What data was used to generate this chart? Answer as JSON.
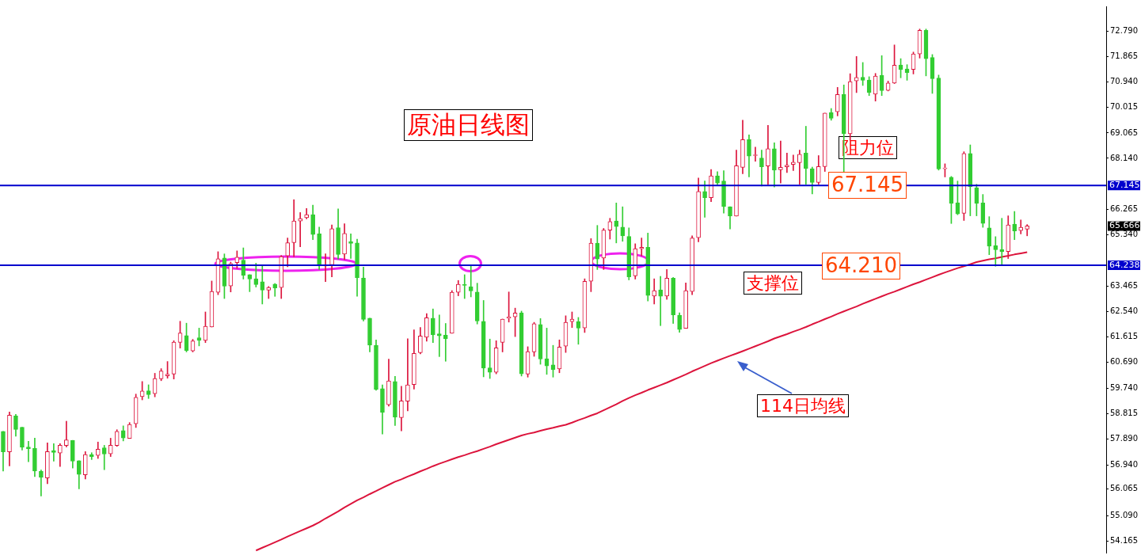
{
  "chart_data": {
    "type": "candlestick",
    "categories": [
      null,
      null,
      null,
      null,
      null,
      null,
      null,
      null,
      null,
      null,
      null,
      null,
      null,
      null,
      null,
      null,
      null,
      null,
      null,
      null,
      null,
      null,
      null,
      null,
      null,
      null,
      null,
      null,
      null,
      null,
      null,
      null,
      null,
      null,
      null,
      null,
      null,
      null,
      null,
      null,
      null,
      null,
      null,
      null,
      null,
      null,
      null,
      null,
      null,
      null,
      null,
      null,
      null,
      null,
      null,
      null,
      null,
      null,
      null,
      null,
      null,
      null,
      null,
      null,
      null,
      null,
      null,
      null,
      null,
      null,
      null,
      null,
      null,
      null,
      null,
      null,
      null,
      null,
      null,
      null,
      null,
      null,
      null,
      null,
      null,
      null,
      null,
      null,
      null,
      null,
      null,
      null,
      null,
      null,
      null,
      null,
      null,
      null,
      null,
      null,
      null,
      null,
      null,
      null,
      null,
      null,
      null,
      null,
      null,
      null,
      null,
      null,
      null,
      null,
      null,
      null,
      null,
      null,
      null,
      null,
      null,
      null,
      null,
      null,
      null,
      null,
      null,
      null,
      null,
      null,
      null,
      null,
      null,
      null,
      null,
      null,
      null,
      null,
      null,
      null,
      null,
      null,
      null,
      null,
      null,
      null,
      null,
      null,
      null,
      null,
      null,
      null,
      null,
      null,
      null,
      null,
      null,
      null,
      null,
      null,
      null,
      null,
      null,
      null,
      null,
      null,
      null,
      null,
      null,
      null,
      null,
      null,
      null,
      null,
      null
    ],
    "ohlc": [
      [
        58.17,
        58.17,
        56.72,
        57.42
      ],
      [
        57.42,
        58.88,
        56.91,
        58.76
      ],
      [
        58.73,
        58.79,
        57.99,
        58.24
      ],
      [
        58.32,
        58.32,
        57.49,
        57.59
      ],
      [
        57.6,
        57.81,
        57.06,
        57.54
      ],
      [
        57.55,
        57.92,
        56.52,
        56.72
      ],
      [
        56.71,
        56.76,
        55.81,
        56.49
      ],
      [
        56.47,
        57.75,
        56.26,
        57.43
      ],
      [
        57.47,
        57.72,
        57.08,
        57.4
      ],
      [
        57.38,
        57.72,
        56.89,
        57.66
      ],
      [
        57.65,
        58.54,
        57.6,
        57.86
      ],
      [
        57.84,
        57.84,
        56.83,
        57.08
      ],
      [
        57.1,
        57.1,
        56.07,
        56.6
      ],
      [
        56.58,
        57.43,
        56.43,
        57.32
      ],
      [
        57.32,
        57.39,
        57.14,
        57.25
      ],
      [
        57.29,
        57.78,
        57.18,
        57.52
      ],
      [
        57.57,
        57.66,
        56.77,
        57.34
      ],
      [
        57.35,
        57.92,
        57.25,
        57.66
      ],
      [
        57.65,
        58.23,
        57.62,
        58.17
      ],
      [
        58.2,
        58.37,
        57.82,
        57.93
      ],
      [
        57.91,
        58.49,
        57.91,
        58.42
      ],
      [
        58.45,
        59.53,
        58.31,
        59.41
      ],
      [
        59.44,
        59.99,
        59.32,
        59.64
      ],
      [
        59.65,
        59.87,
        59.37,
        59.51
      ],
      [
        59.55,
        60.29,
        59.43,
        60.1
      ],
      [
        60.09,
        60.46,
        60.02,
        60.37
      ],
      [
        60.2,
        60.72,
        60.11,
        60.26
      ],
      [
        60.26,
        61.48,
        60.08,
        61.43
      ],
      [
        61.42,
        62.19,
        61.21,
        61.76
      ],
      [
        61.67,
        62.12,
        61.07,
        61.12
      ],
      [
        61.11,
        61.53,
        61.07,
        61.47
      ],
      [
        61.59,
        61.94,
        61.29,
        61.49
      ],
      [
        61.49,
        62.53,
        61.41,
        62.01
      ],
      [
        61.98,
        63.66,
        61.98,
        63.28
      ],
      [
        63.25,
        64.73,
        63.16,
        64.47
      ],
      [
        64.5,
        64.65,
        63.02,
        63.47
      ],
      [
        63.48,
        64.35,
        63.26,
        64.3
      ],
      [
        64.33,
        64.76,
        64.12,
        64.53
      ],
      [
        64.42,
        64.87,
        63.73,
        63.87
      ],
      [
        63.89,
        63.89,
        63.27,
        63.73
      ],
      [
        63.74,
        64.31,
        63.44,
        63.53
      ],
      [
        63.63,
        64.2,
        62.82,
        63.33
      ],
      [
        63.33,
        63.46,
        63.02,
        63.42
      ],
      [
        63.55,
        63.57,
        63.1,
        63.41
      ],
      [
        63.42,
        64.59,
        63.02,
        64.55
      ],
      [
        64.58,
        65.23,
        64.18,
        65.06
      ],
      [
        65.06,
        66.63,
        64.55,
        65.85
      ],
      [
        65.85,
        66.16,
        64.91,
        65.94
      ],
      [
        65.97,
        66.31,
        65.93,
        66.08
      ],
      [
        66.08,
        66.43,
        65.17,
        65.36
      ],
      [
        65.38,
        65.63,
        64.08,
        64.21
      ],
      [
        64.21,
        64.65,
        63.64,
        64.25
      ],
      [
        64.25,
        65.71,
        63.81,
        65.57
      ],
      [
        65.61,
        66.29,
        64.46,
        64.63
      ],
      [
        64.64,
        65.75,
        64.44,
        65.4
      ],
      [
        65.1,
        65.38,
        64.48,
        65.03
      ],
      [
        65.05,
        65.19,
        63.1,
        63.78
      ],
      [
        63.77,
        64.17,
        62.2,
        62.26
      ],
      [
        62.3,
        62.3,
        61.07,
        61.32
      ],
      [
        61.31,
        61.51,
        59.67,
        59.7
      ],
      [
        59.73,
        59.87,
        58.07,
        58.86
      ],
      [
        59.14,
        60.81,
        59.09,
        60.01
      ],
      [
        59.99,
        60.18,
        58.38,
        58.69
      ],
      [
        58.67,
        59.82,
        58.19,
        59.28
      ],
      [
        59.27,
        61.55,
        58.92,
        59.87
      ],
      [
        59.88,
        61.88,
        59.71,
        61.02
      ],
      [
        61.04,
        61.96,
        61.0,
        61.65
      ],
      [
        61.61,
        62.47,
        61.46,
        62.32
      ],
      [
        62.3,
        62.64,
        61.41,
        61.69
      ],
      [
        61.73,
        62.42,
        60.9,
        61.66
      ],
      [
        61.68,
        62.11,
        60.73,
        61.55
      ],
      [
        61.75,
        63.31,
        61.75,
        63.25
      ],
      [
        63.25,
        63.68,
        63.12,
        63.54
      ],
      [
        63.52,
        63.89,
        63.02,
        63.5
      ],
      [
        63.45,
        64.23,
        63.08,
        63.3
      ],
      [
        63.26,
        63.58,
        62.09,
        62.2
      ],
      [
        62.19,
        62.95,
        60.16,
        60.48
      ],
      [
        60.49,
        61.54,
        60.1,
        60.33
      ],
      [
        60.33,
        61.48,
        60.27,
        61.22
      ],
      [
        61.42,
        62.27,
        61.07,
        62.27
      ],
      [
        62.3,
        63.26,
        62.16,
        62.35
      ],
      [
        62.35,
        62.67,
        61.63,
        62.49
      ],
      [
        62.5,
        62.56,
        60.19,
        60.27
      ],
      [
        60.26,
        61.26,
        60.15,
        61.08
      ],
      [
        61.07,
        62.15,
        60.91,
        62.1
      ],
      [
        62.07,
        62.29,
        60.62,
        60.81
      ],
      [
        60.82,
        61.94,
        60.25,
        60.56
      ],
      [
        60.6,
        61.31,
        60.15,
        60.42
      ],
      [
        60.45,
        61.51,
        60.31,
        61.25
      ],
      [
        61.28,
        62.39,
        61.05,
        62.15
      ],
      [
        62.18,
        62.53,
        61.96,
        62.27
      ],
      [
        62.18,
        62.33,
        61.35,
        61.94
      ],
      [
        61.95,
        63.74,
        61.78,
        63.65
      ],
      [
        63.65,
        65.21,
        63.27,
        65.04
      ],
      [
        65.04,
        65.69,
        64.08,
        64.46
      ],
      [
        64.5,
        65.58,
        64.08,
        65.52
      ],
      [
        65.52,
        65.95,
        65.19,
        65.83
      ],
      [
        65.85,
        66.51,
        65.05,
        65.65
      ],
      [
        65.63,
        66.37,
        65.11,
        65.31
      ],
      [
        65.29,
        65.6,
        63.7,
        63.81
      ],
      [
        63.85,
        65.02,
        63.73,
        64.84
      ],
      [
        64.84,
        65.23,
        64.58,
        64.89
      ],
      [
        64.89,
        65.41,
        62.93,
        63.13
      ],
      [
        63.11,
        63.74,
        62.82,
        63.31
      ],
      [
        63.34,
        63.83,
        62.03,
        63.1
      ],
      [
        63.11,
        64.08,
        62.99,
        63.76
      ],
      [
        63.76,
        63.79,
        62.11,
        62.42
      ],
      [
        62.41,
        62.5,
        61.79,
        61.89
      ],
      [
        61.93,
        63.59,
        61.93,
        63.31
      ],
      [
        63.28,
        65.31,
        63.16,
        65.23
      ],
      [
        65.24,
        67.42,
        65.09,
        66.93
      ],
      [
        66.93,
        67.31,
        65.99,
        66.7
      ],
      [
        66.7,
        67.73,
        66.56,
        67.5
      ],
      [
        67.5,
        67.65,
        67.18,
        67.24
      ],
      [
        67.31,
        67.69,
        66.14,
        66.38
      ],
      [
        66.37,
        66.37,
        65.56,
        66.03
      ],
      [
        66.03,
        68.44,
        66.03,
        67.87
      ],
      [
        67.81,
        69.53,
        67.58,
        68.82
      ],
      [
        68.82,
        69.0,
        67.46,
        68.22
      ],
      [
        68.24,
        68.55,
        68.03,
        68.26
      ],
      [
        68.15,
        68.44,
        67.13,
        67.83
      ],
      [
        67.86,
        69.34,
        67.18,
        68.49
      ],
      [
        68.49,
        68.71,
        67.09,
        67.71
      ],
      [
        67.72,
        68.77,
        67.24,
        67.81
      ],
      [
        67.83,
        68.33,
        67.62,
        67.89
      ],
      [
        67.92,
        68.26,
        67.69,
        68.0
      ],
      [
        67.98,
        68.44,
        67.19,
        68.29
      ],
      [
        68.33,
        69.31,
        67.19,
        67.77
      ],
      [
        67.76,
        67.82,
        66.84,
        67.26
      ],
      [
        67.26,
        68.24,
        67.19,
        67.84
      ],
      [
        67.84,
        69.79,
        67.66,
        69.79
      ],
      [
        69.81,
        69.96,
        69.53,
        69.6
      ],
      [
        69.84,
        70.73,
        69.69,
        70.47
      ],
      [
        70.47,
        70.82,
        67.62,
        69.04
      ],
      [
        69.04,
        71.23,
        68.8,
        70.94
      ],
      [
        70.97,
        71.86,
        70.54,
        71.09
      ],
      [
        71.1,
        71.64,
        70.8,
        70.99
      ],
      [
        71.0,
        71.12,
        70.43,
        70.54
      ],
      [
        70.48,
        71.24,
        70.23,
        71.14
      ],
      [
        71.17,
        71.89,
        70.43,
        70.61
      ],
      [
        70.62,
        70.96,
        70.6,
        70.89
      ],
      [
        70.89,
        72.28,
        70.87,
        71.54
      ],
      [
        71.55,
        71.78,
        71.08,
        71.38
      ],
      [
        71.4,
        71.56,
        70.99,
        71.27
      ],
      [
        71.39,
        72.02,
        71.22,
        71.95
      ],
      [
        71.95,
        72.86,
        71.8,
        72.81
      ],
      [
        72.81,
        72.86,
        71.15,
        71.78
      ],
      [
        71.82,
        71.93,
        70.51,
        71.05
      ],
      [
        71.07,
        71.18,
        67.71,
        67.75
      ],
      [
        67.76,
        67.94,
        67.46,
        67.78
      ],
      [
        67.45,
        67.48,
        65.76,
        66.49
      ],
      [
        66.52,
        67.31,
        66.08,
        66.11
      ],
      [
        66.13,
        68.38,
        65.87,
        68.32
      ],
      [
        68.32,
        68.63,
        66.04,
        67.1
      ],
      [
        67.07,
        67.19,
        66.04,
        66.49
      ],
      [
        66.51,
        66.82,
        65.62,
        65.76
      ],
      [
        65.6,
        66.01,
        64.62,
        64.93
      ],
      [
        64.95,
        65.28,
        64.2,
        64.8
      ],
      [
        64.81,
        65.95,
        64.26,
        64.73
      ],
      [
        64.74,
        66.04,
        64.48,
        65.71
      ],
      [
        65.74,
        66.2,
        65.17,
        65.49
      ],
      [
        65.5,
        65.89,
        65.38,
        65.62
      ],
      [
        65.55,
        65.72,
        65.31,
        65.67
      ],
      null,
      null,
      null,
      null,
      null,
      null,
      null,
      null,
      null,
      null,
      null,
      null
    ],
    "colors": [
      "#32cd32",
      "#dc143c",
      "#32cd32",
      "#32cd32",
      "#32cd32",
      "#32cd32",
      "#32cd32",
      "#dc143c",
      "#32cd32",
      "#dc143c",
      "#dc143c",
      "#32cd32",
      "#32cd32",
      "#dc143c",
      "#32cd32",
      "#dc143c",
      "#32cd32",
      "#dc143c",
      "#dc143c",
      "#32cd32",
      "#dc143c",
      "#dc143c",
      "#dc143c",
      "#32cd32",
      "#dc143c",
      "#dc143c",
      "#dc143c",
      "#dc143c",
      "#dc143c",
      "#32cd32",
      "#dc143c",
      "#32cd32",
      "#dc143c",
      "#dc143c",
      "#dc143c",
      "#32cd32",
      "#dc143c",
      "#dc143c",
      "#32cd32",
      "#32cd32",
      "#32cd32",
      "#32cd32",
      "#dc143c",
      "#32cd32",
      "#dc143c",
      "#dc143c",
      "#dc143c",
      "#dc143c",
      "#dc143c",
      "#32cd32",
      "#32cd32",
      "#dc143c",
      "#dc143c",
      "#32cd32",
      "#dc143c",
      "#32cd32",
      "#32cd32",
      "#32cd32",
      "#32cd32",
      "#32cd32",
      "#32cd32",
      "#dc143c",
      "#32cd32",
      "#dc143c",
      "#dc143c",
      "#dc143c",
      "#dc143c",
      "#dc143c",
      "#32cd32",
      "#32cd32",
      "#32cd32",
      "#dc143c",
      "#dc143c",
      "#32cd32",
      "#32cd32",
      "#32cd32",
      "#32cd32",
      "#32cd32",
      "#dc143c",
      "#dc143c",
      "#dc143c",
      "#dc143c",
      "#32cd32",
      "#dc143c",
      "#dc143c",
      "#32cd32",
      "#32cd32",
      "#32cd32",
      "#dc143c",
      "#dc143c",
      "#dc143c",
      "#32cd32",
      "#dc143c",
      "#dc143c",
      "#32cd32",
      "#dc143c",
      "#dc143c",
      "#32cd32",
      "#32cd32",
      "#32cd32",
      "#dc143c",
      "#dc143c",
      "#32cd32",
      "#dc143c",
      "#32cd32",
      "#dc143c",
      "#32cd32",
      "#32cd32",
      "#dc143c",
      "#dc143c",
      "#dc143c",
      "#32cd32",
      "#dc143c",
      "#32cd32",
      "#32cd32",
      "#32cd32",
      "#dc143c",
      "#dc143c",
      "#32cd32",
      "#dc143c",
      "#32cd32",
      "#dc143c",
      "#32cd32",
      "#dc143c",
      "#dc143c",
      "#dc143c",
      "#dc143c",
      "#32cd32",
      "#32cd32",
      "#dc143c",
      "#dc143c",
      "#32cd32",
      "#dc143c",
      "#32cd32",
      "#dc143c",
      "#dc143c",
      "#32cd32",
      "#32cd32",
      "#dc143c",
      "#32cd32",
      "#dc143c",
      "#dc143c",
      "#32cd32",
      "#32cd32",
      "#dc143c",
      "#dc143c",
      "#32cd32",
      "#32cd32",
      "#32cd32",
      "#dc143c",
      "#32cd32",
      "#32cd32",
      "#dc143c",
      "#32cd32",
      "#32cd32",
      "#32cd32",
      "#32cd32",
      "#32cd32",
      "#32cd32",
      "#dc143c",
      "#32cd32",
      "#dc143c",
      "#dc143c",
      null,
      null,
      null,
      null,
      null,
      null,
      null,
      null,
      null,
      null,
      null,
      null
    ],
    "series": [
      {
        "type": "line",
        "color": "#dc143c",
        "values": [
          null,
          null,
          null,
          null,
          null,
          null,
          null,
          null,
          null,
          null,
          null,
          null,
          null,
          null,
          null,
          null,
          null,
          null,
          null,
          null,
          null,
          null,
          null,
          null,
          null,
          null,
          null,
          null,
          null,
          null,
          null,
          null,
          null,
          null,
          null,
          null,
          null,
          null,
          null,
          null,
          53.82,
          53.92,
          54.02,
          54.12,
          54.22,
          54.33,
          54.43,
          54.53,
          54.63,
          54.73,
          54.85,
          54.99,
          55.12,
          55.25,
          55.39,
          55.52,
          55.65,
          55.76,
          55.88,
          55.99,
          56.11,
          56.22,
          56.33,
          56.42,
          56.52,
          56.61,
          56.71,
          56.8,
          56.9,
          56.99,
          57.07,
          57.15,
          57.23,
          57.3,
          57.38,
          57.45,
          57.53,
          57.61,
          57.7,
          57.78,
          57.86,
          57.94,
          58.02,
          58.08,
          58.13,
          58.19,
          58.25,
          58.3,
          58.36,
          58.41,
          58.49,
          58.58,
          58.66,
          58.75,
          58.83,
          58.94,
          59.05,
          59.16,
          59.28,
          59.39,
          59.49,
          59.58,
          59.68,
          59.77,
          59.86,
          59.95,
          60.05,
          60.15,
          60.25,
          60.36,
          60.46,
          60.56,
          60.66,
          60.75,
          60.84,
          60.93,
          61.01,
          61.1,
          61.19,
          61.28,
          61.37,
          61.46,
          61.56,
          61.64,
          61.72,
          61.81,
          61.89,
          61.98,
          62.08,
          62.17,
          62.27,
          62.36,
          62.46,
          62.55,
          62.64,
          62.73,
          62.83,
          62.92,
          63.01,
          63.1,
          63.19,
          63.27,
          63.36,
          63.45,
          63.54,
          63.62,
          63.71,
          63.8,
          63.89,
          63.97,
          64.05,
          64.13,
          64.2,
          64.27,
          64.35,
          64.4,
          64.45,
          64.49,
          64.54,
          64.58,
          64.63,
          64.67,
          64.71,
          null,
          null,
          null,
          null,
          null,
          null,
          null,
          null,
          null,
          null,
          null,
          null
        ]
      }
    ],
    "ylim": [
      53.74,
      73.69
    ],
    "yticks": [
      {
        "value": 54.165,
        "label": "54.165"
      },
      {
        "value": 55.09,
        "label": "55.090"
      },
      {
        "value": 56.065,
        "label": "56.065"
      },
      {
        "value": 56.94,
        "label": "56.940"
      },
      {
        "value": 57.89,
        "label": "57.890"
      },
      {
        "value": 58.815,
        "label": "58.815"
      },
      {
        "value": 59.74,
        "label": "59.740"
      },
      {
        "value": 60.69,
        "label": "60.690"
      },
      {
        "value": 61.615,
        "label": "61.615"
      },
      {
        "value": 62.54,
        "label": "62.540"
      },
      {
        "value": 63.465,
        "label": "63.465"
      },
      {
        "value": 65.34,
        "label": "65.340"
      },
      {
        "value": 66.265,
        "label": "66.265"
      },
      {
        "value": 68.14,
        "label": "68.140"
      },
      {
        "value": 69.065,
        "label": "69.065"
      },
      {
        "value": 70.015,
        "label": "70.015"
      },
      {
        "value": 70.94,
        "label": "70.940"
      },
      {
        "value": 71.865,
        "label": "71.865"
      },
      {
        "value": 72.79,
        "label": "72.790"
      }
    ],
    "tick_labels": "y",
    "ref_lines": [
      {
        "axis": "y",
        "value": 67.145,
        "label": "67.145",
        "color": "#0000cd"
      },
      {
        "axis": "y",
        "value": 64.238,
        "label": "64.238",
        "color": "#0000cd"
      }
    ],
    "annotations": [
      "原油日线图",
      "阻力位",
      {
        "text": "67.145",
        "y": 67.145
      },
      {
        "text": "64.210",
        "y": 64.21
      },
      "支撑位",
      "114日均线",
      "65.666"
    ]
  }
}
